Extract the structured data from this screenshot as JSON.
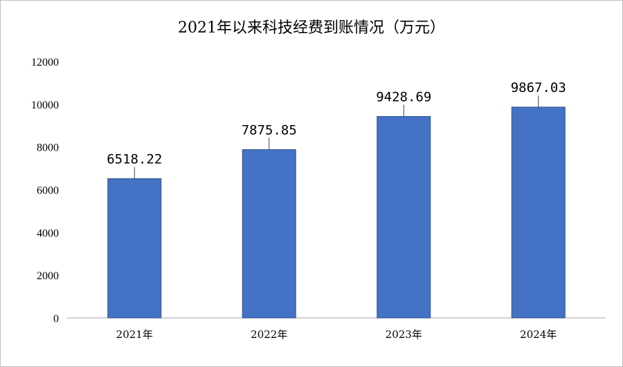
{
  "chart_data": {
    "type": "bar",
    "title": "2021年以来科技经费到账情况（万元）",
    "categories": [
      "2021年",
      "2022年",
      "2023年",
      "2024年"
    ],
    "values": [
      6518.22,
      7875.85,
      9428.69,
      9867.03
    ],
    "data_labels": [
      "6518.22",
      "7875.85",
      "9428.69",
      "9867.03"
    ],
    "y_ticks": [
      "0",
      "2000",
      "4000",
      "6000",
      "8000",
      "10000",
      "12000"
    ],
    "ylim": [
      0,
      12000
    ],
    "xlabel": "",
    "ylabel": "",
    "grid": false,
    "legend": "none",
    "bar_color": "#4472c4",
    "bar_edge_color": "#2f528f",
    "axis_color": "#a6a6a6",
    "leader_color": "#404040"
  }
}
